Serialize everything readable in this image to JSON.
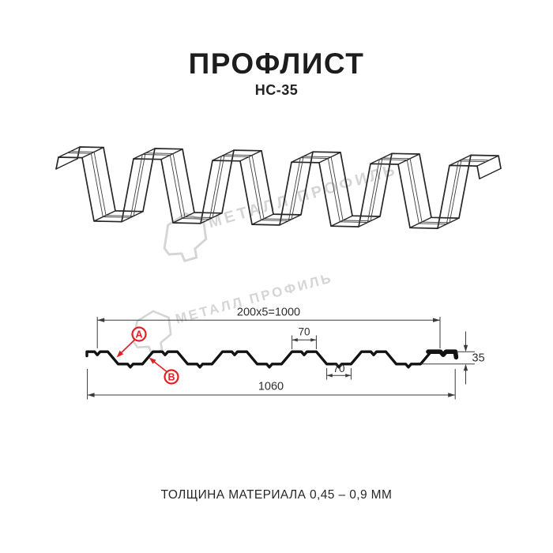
{
  "header": {
    "title": "ПРОФЛИСТ",
    "subtitle": "НС-35"
  },
  "caption": "ТОЛЩИНА МАТЕРИАЛА 0,45 – 0,9 ММ",
  "watermark": {
    "text": "МЕТАЛЛ ПРОФИЛЬ"
  },
  "diagram": {
    "labels": {
      "a": "A",
      "b": "B"
    },
    "dims": {
      "top_total": "200x5=1000",
      "rib_top": "70",
      "rib_bottom": "70",
      "height": "35",
      "overall": "1060"
    }
  },
  "colors": {
    "accent_red": "#e31e24",
    "line": "#3b3b3b",
    "ink": "#1d1d1d",
    "watermark": "#d5d5d5"
  }
}
